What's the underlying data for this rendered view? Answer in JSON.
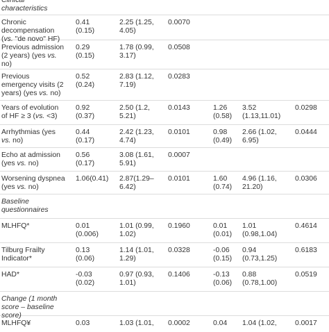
{
  "rows": [
    {
      "type": "section",
      "label": "Clinical\ncharacteristics"
    },
    {
      "type": "data",
      "label": [
        "Chronic\ndecompensation\n(",
        {
          "i": "vs."
        },
        " \"de novo\" HF)"
      ],
      "c1": "0.41\n(0.15)",
      "c2": "2.25 (1.25,\n4.05)",
      "c3": "0.0070",
      "c4": "",
      "c5": "",
      "c6": ""
    },
    {
      "type": "data",
      "label": [
        "Previous admission\n(2 years) (yes ",
        {
          "i": "vs."
        },
        "\nno)"
      ],
      "c1": "0.29\n(0.15)",
      "c2": "1.78 (0.99,\n3.17)",
      "c3": "0.0508",
      "c4": "",
      "c5": "",
      "c6": ""
    },
    {
      "type": "data",
      "label": [
        "Previous\nemergency visits (2\nyears) (yes ",
        {
          "i": "vs."
        },
        " no)"
      ],
      "c1": "0.52\n(0.24)",
      "c2": "2.83 (1.12,\n7.19)",
      "c3": "0.0283",
      "c4": "",
      "c5": "",
      "c6": ""
    },
    {
      "type": "data",
      "label": [
        "Years of evolution\nof HF ≥ 3 (",
        {
          "i": "vs."
        },
        " <3)"
      ],
      "c1": "0.92\n(0.37)",
      "c2": "2.50 (1.2,\n5.21)",
      "c3": "0.0143",
      "c4": "1.26\n(0.58)",
      "c5": "3.52\n(1.13,11.01)",
      "c6": "0.0298"
    },
    {
      "type": "data",
      "label": [
        "Arrhythmias (yes\n",
        {
          "i": "vs."
        },
        " no)"
      ],
      "c1": "0.44\n(0.17)",
      "c2": "2.42 (1.23,\n4.74)",
      "c3": "0.0101",
      "c4": "0.98\n(0.49)",
      "c5": "2.66 (1.02,\n6.95)",
      "c6": "0.0444"
    },
    {
      "type": "data",
      "label": [
        "Echo at admission\n(yes ",
        {
          "i": "vs."
        },
        " no)"
      ],
      "c1": "0.56\n(0.17)",
      "c2": "3.08 (1.61,\n5.91)",
      "c3": "0.0007",
      "c4": "",
      "c5": "",
      "c6": ""
    },
    {
      "type": "data",
      "label": [
        "Worsening dyspnea\n(yes ",
        {
          "i": "vs."
        },
        " no)"
      ],
      "c1": "1.06(0.41)",
      "c2": "2.87(1.29–\n6.42)",
      "c3": "0.0101",
      "c4": "1.60\n(0.74)",
      "c5": "4.96 (1.16,\n21.20)",
      "c6": "0.0306"
    },
    {
      "type": "section",
      "label": "Baseline\nquestionnaires"
    },
    {
      "type": "data",
      "label": [
        "MLHFQ*"
      ],
      "c1": "0.01\n(0.006)",
      "c2": "1.01 (0.99,\n1.02)",
      "c3": "0.1960",
      "c4": "0.01\n(0.01)",
      "c5": "1.01\n(0.98,1.04)",
      "c6": "0.4614"
    },
    {
      "type": "data",
      "label": [
        "Tilburg Frailty\nIndicator*"
      ],
      "c1": "0.13\n(0.06)",
      "c2": "1.14 (1.01,\n1.29)",
      "c3": "0.0328",
      "c4": "-0.06\n(0.15)",
      "c5": "0.94\n(0.73,1.25)",
      "c6": "0.6183"
    },
    {
      "type": "data",
      "label": [
        "HAD*"
      ],
      "c1": "-0.03\n(0.02)",
      "c2": "0.97 (0.93,\n1.01)",
      "c3": "0.1406",
      "c4": "-0.13\n(0.06)",
      "c5": "0.88\n(0.78,1.00)",
      "c6": "0.0519"
    },
    {
      "type": "section",
      "label": "Change (1 month\nscore – baseline\nscore)"
    },
    {
      "type": "data",
      "label": [
        "MLHFQ¥"
      ],
      "c1": "0.03",
      "c2": "1.03 (1.01,",
      "c3": "0.0002",
      "c4": "0.04",
      "c5": "1.04 (1.02,",
      "c6": "0.0017"
    }
  ]
}
